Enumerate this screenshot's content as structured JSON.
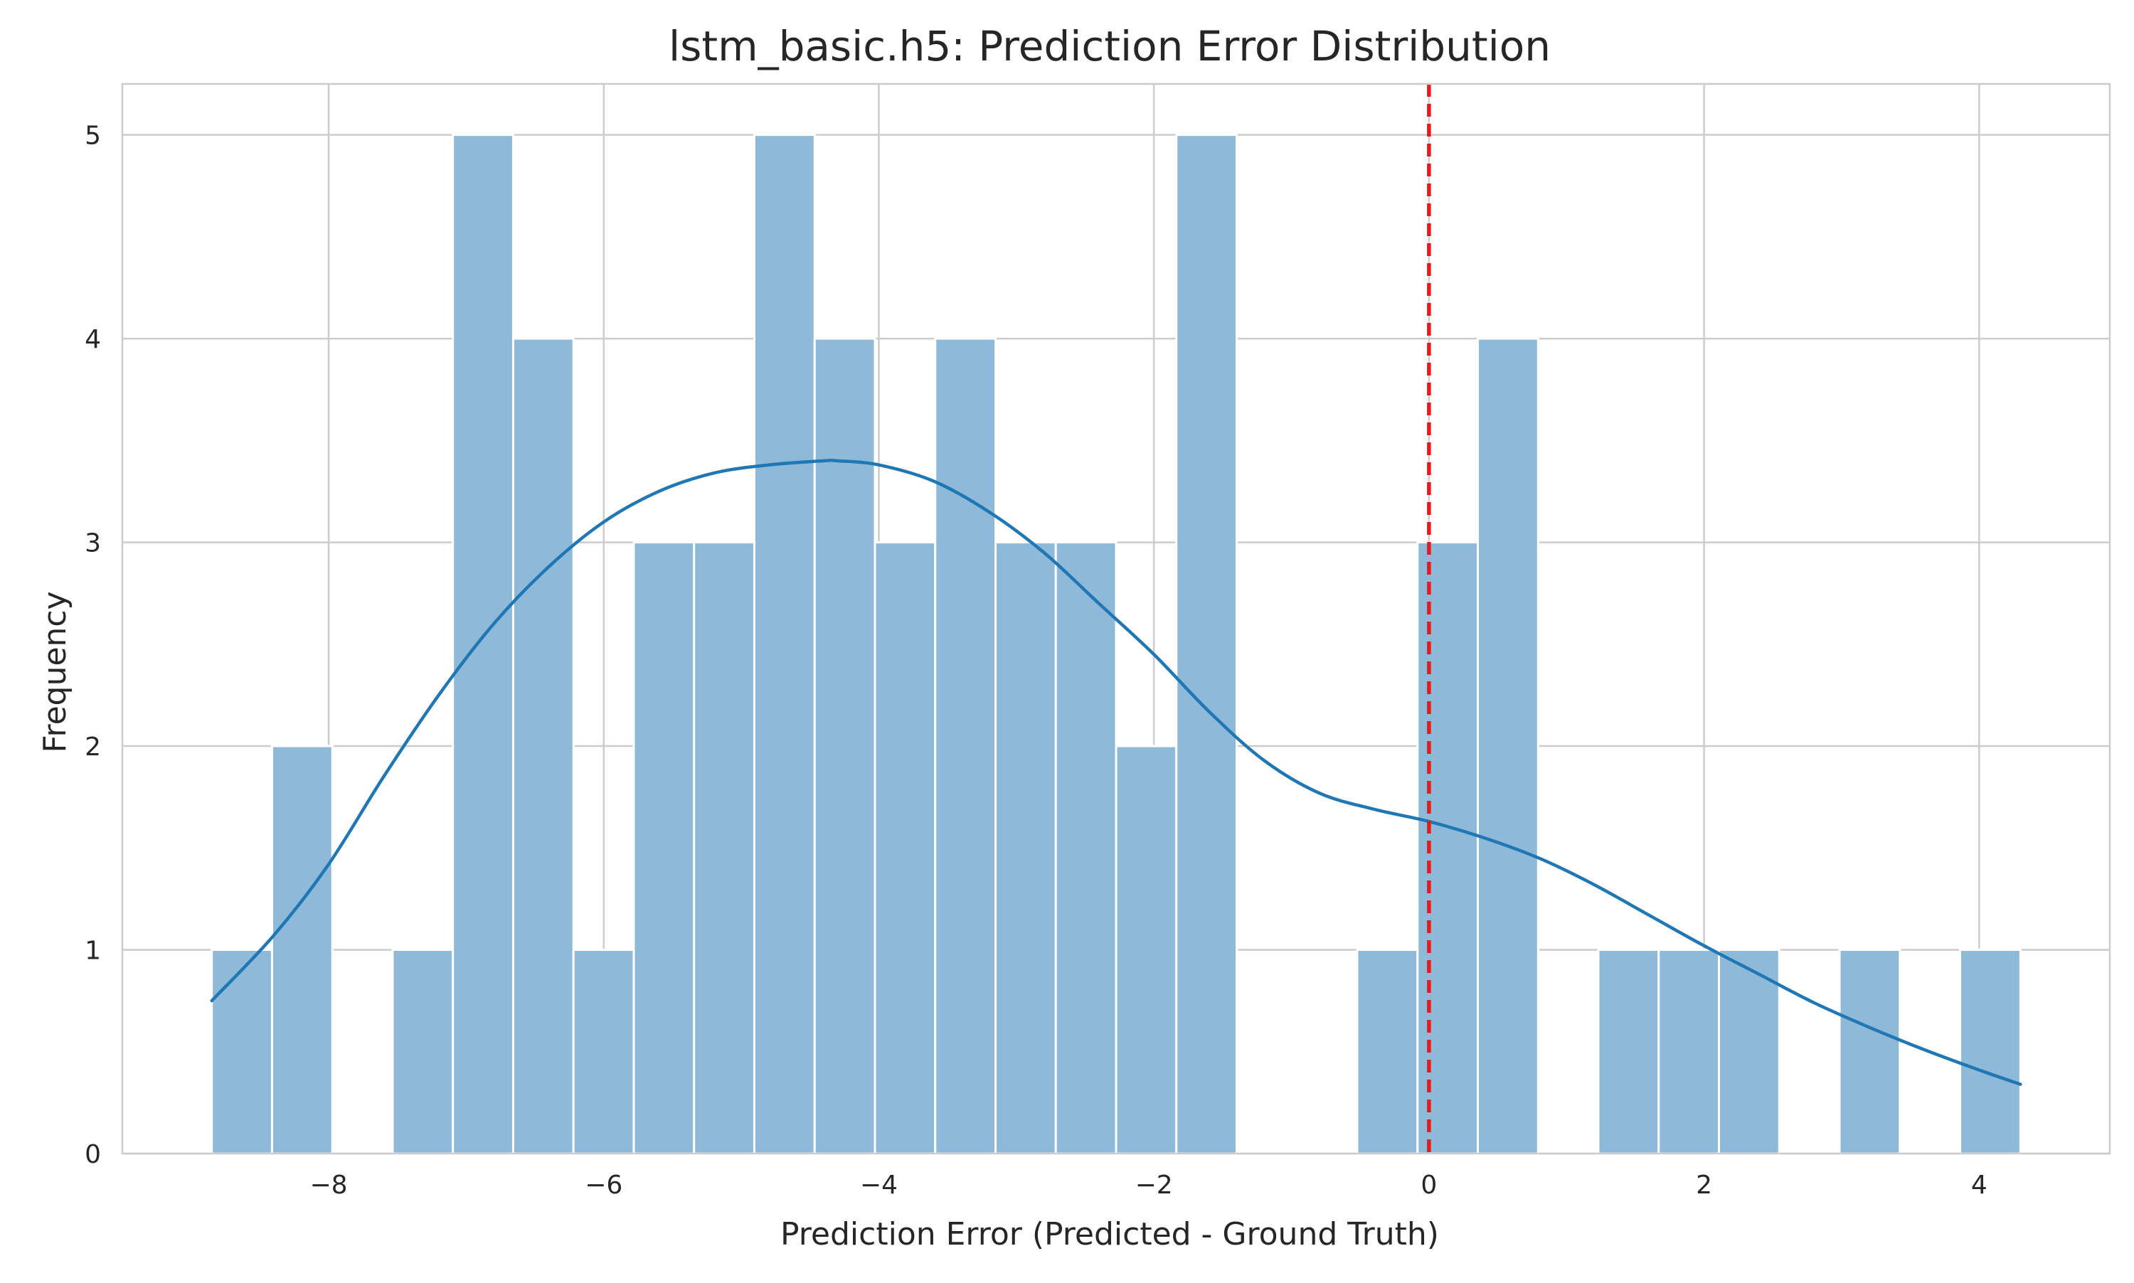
{
  "chart_data": {
    "type": "bar",
    "title": "lstm_basic.h5: Prediction Error Distribution",
    "xlabel": "Prediction Error (Predicted - Ground Truth)",
    "ylabel": "Frequency",
    "xlim": [
      -9.5,
      4.95
    ],
    "ylim": [
      0,
      5.25
    ],
    "x_ticks": [
      -8,
      -6,
      -4,
      -2,
      0,
      2,
      4
    ],
    "x_tick_labels": [
      "−8",
      "−6",
      "−4",
      "−2",
      "0",
      "2",
      "4"
    ],
    "y_ticks": [
      0,
      1,
      2,
      3,
      4,
      5
    ],
    "y_tick_labels": [
      "0",
      "1",
      "2",
      "3",
      "4",
      "5"
    ],
    "grid": true,
    "bin_range": [
      -8.85,
      4.3
    ],
    "counts": [
      1,
      2,
      0,
      1,
      5,
      4,
      1,
      3,
      3,
      5,
      4,
      3,
      4,
      3,
      3,
      2,
      5,
      0,
      0,
      1,
      3,
      4,
      0,
      1,
      1,
      1,
      0,
      1,
      0,
      1
    ],
    "kde": {
      "x": [
        -8.85,
        -8.4,
        -8.0,
        -7.6,
        -7.2,
        -6.8,
        -6.4,
        -6.0,
        -5.6,
        -5.2,
        -4.8,
        -4.4,
        -4.3,
        -4.0,
        -3.6,
        -3.2,
        -2.8,
        -2.4,
        -2.0,
        -1.6,
        -1.2,
        -0.8,
        -0.4,
        0.0,
        0.4,
        0.8,
        1.2,
        1.6,
        2.0,
        2.4,
        2.8,
        3.2,
        3.6,
        4.0,
        4.3
      ],
      "y": [
        0.75,
        1.07,
        1.42,
        1.85,
        2.25,
        2.6,
        2.88,
        3.1,
        3.25,
        3.34,
        3.38,
        3.4,
        3.4,
        3.38,
        3.3,
        3.15,
        2.95,
        2.7,
        2.45,
        2.17,
        1.93,
        1.77,
        1.69,
        1.63,
        1.55,
        1.45,
        1.32,
        1.17,
        1.02,
        0.88,
        0.74,
        0.62,
        0.51,
        0.41,
        0.34
      ]
    },
    "reference_line": {
      "x": 0,
      "color": "#e41a1c",
      "style": "dashed"
    },
    "colors": {
      "bar_fill": "#8fb9d9",
      "bar_edge": "#ffffff",
      "kde_line": "#1f77b4",
      "grid": "#cccccc",
      "axes_border": "#cccccc"
    }
  }
}
